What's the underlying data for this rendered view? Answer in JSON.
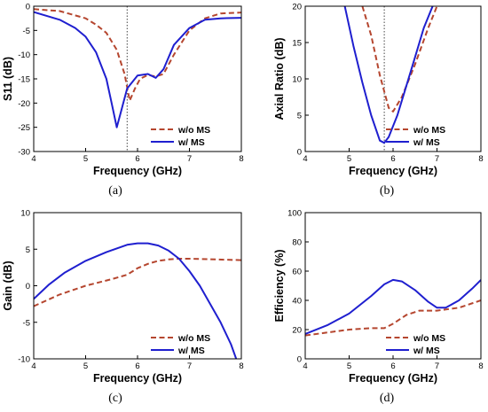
{
  "chart_data": [
    {
      "type": "line",
      "caption": "(a)",
      "xlabel": "Frequency (GHz)",
      "ylabel": "S11 (dB)",
      "xlim": [
        4,
        8
      ],
      "ylim": [
        -30,
        0
      ],
      "xticks": [
        "4",
        "5",
        "6",
        "7",
        "8"
      ],
      "yticks": [
        "0",
        "-5",
        "-10",
        "-15",
        "-20",
        "-25",
        "-30"
      ],
      "marker_x": 5.8,
      "legend_position": "bottom-right",
      "series": [
        {
          "name": "w/o MS",
          "color": "#b5462f",
          "dash": true,
          "x": [
            4.0,
            4.5,
            5.0,
            5.2,
            5.4,
            5.6,
            5.75,
            5.85,
            5.95,
            6.05,
            6.2,
            6.35,
            6.5,
            6.7,
            7.0,
            7.3,
            7.6,
            8.0
          ],
          "y": [
            -0.6,
            -1.0,
            -2.5,
            -3.8,
            -5.5,
            -9.0,
            -14.0,
            -19.5,
            -17.0,
            -15.0,
            -14.2,
            -14.5,
            -14.0,
            -10.0,
            -5.0,
            -2.5,
            -1.5,
            -1.3
          ]
        },
        {
          "name": "w/ MS",
          "color": "#1f1fcf",
          "dash": false,
          "x": [
            4.0,
            4.5,
            4.8,
            5.0,
            5.2,
            5.4,
            5.5,
            5.6,
            5.7,
            5.8,
            6.0,
            6.2,
            6.35,
            6.5,
            6.7,
            7.0,
            7.3,
            7.6,
            8.0
          ],
          "y": [
            -1.2,
            -2.8,
            -4.5,
            -6.3,
            -9.5,
            -15.0,
            -20.0,
            -25.0,
            -21.0,
            -17.0,
            -14.3,
            -14.0,
            -14.8,
            -13.0,
            -8.0,
            -4.5,
            -2.8,
            -2.5,
            -2.4
          ]
        }
      ]
    },
    {
      "type": "line",
      "caption": "(b)",
      "xlabel": "Frequency (GHz)",
      "ylabel": "Axial Ratio (dB)",
      "xlim": [
        4,
        8
      ],
      "ylim": [
        0,
        20
      ],
      "xticks": [
        "4",
        "5",
        "6",
        "7",
        "8"
      ],
      "yticks": [
        "0",
        "5",
        "10",
        "15",
        "20"
      ],
      "marker_x": 5.8,
      "legend_position": "bottom-right",
      "series": [
        {
          "name": "w/o MS",
          "color": "#b5462f",
          "dash": true,
          "x": [
            5.3,
            5.5,
            5.7,
            5.9,
            6.0,
            6.2,
            6.5,
            6.8,
            7.0
          ],
          "y": [
            20.0,
            16.0,
            10.5,
            6.0,
            5.5,
            7.5,
            12.0,
            17.0,
            20.0
          ]
        },
        {
          "name": "w/ MS",
          "color": "#1f1fcf",
          "dash": false,
          "x": [
            4.9,
            5.1,
            5.3,
            5.5,
            5.7,
            5.8,
            5.9,
            6.1,
            6.3,
            6.5,
            6.7,
            6.9
          ],
          "y": [
            20.0,
            14.5,
            9.5,
            5.0,
            1.5,
            1.2,
            2.0,
            5.0,
            9.0,
            13.0,
            17.0,
            20.0
          ]
        }
      ]
    },
    {
      "type": "line",
      "caption": "(c)",
      "xlabel": "Frequency (GHz)",
      "ylabel": "Gain (dB)",
      "xlim": [
        4,
        8
      ],
      "ylim": [
        -10,
        10
      ],
      "xticks": [
        "4",
        "5",
        "6",
        "7",
        "8"
      ],
      "yticks": [
        "10",
        "5",
        "0",
        "-5",
        "-10"
      ],
      "legend_position": "bottom-right",
      "series": [
        {
          "name": "w/o MS",
          "color": "#b5462f",
          "dash": true,
          "x": [
            4.0,
            4.5,
            5.0,
            5.5,
            5.8,
            6.0,
            6.2,
            6.4,
            6.6,
            6.8,
            7.0,
            7.5,
            8.0
          ],
          "y": [
            -2.8,
            -1.2,
            0.0,
            0.9,
            1.5,
            2.4,
            3.0,
            3.4,
            3.6,
            3.7,
            3.7,
            3.6,
            3.5
          ]
        },
        {
          "name": "w/ MS",
          "color": "#1f1fcf",
          "dash": false,
          "x": [
            4.0,
            4.3,
            4.6,
            5.0,
            5.4,
            5.8,
            6.0,
            6.2,
            6.4,
            6.6,
            6.8,
            7.0,
            7.2,
            7.4,
            7.6,
            7.8,
            7.9
          ],
          "y": [
            -1.8,
            0.2,
            1.8,
            3.4,
            4.6,
            5.6,
            5.8,
            5.8,
            5.5,
            4.8,
            3.7,
            2.0,
            0.0,
            -2.5,
            -5.0,
            -8.0,
            -10.0
          ]
        }
      ]
    },
    {
      "type": "line",
      "caption": "(d)",
      "xlabel": "Frequency (GHz)",
      "ylabel": "Efficiency (%)",
      "xlim": [
        4,
        8
      ],
      "ylim": [
        0,
        100
      ],
      "xticks": [
        "4",
        "5",
        "6",
        "7",
        "8"
      ],
      "yticks": [
        "0",
        "20",
        "40",
        "60",
        "80",
        "100"
      ],
      "legend_position": "bottom-right",
      "series": [
        {
          "name": "w/o MS",
          "color": "#b5462f",
          "dash": true,
          "x": [
            4.0,
            4.5,
            5.0,
            5.5,
            5.8,
            6.0,
            6.3,
            6.6,
            7.0,
            7.5,
            8.0
          ],
          "y": [
            16.0,
            18.0,
            20.0,
            21.0,
            21.0,
            24.0,
            30.0,
            33.0,
            33.0,
            35.0,
            40.0
          ]
        },
        {
          "name": "w/ MS",
          "color": "#1f1fcf",
          "dash": false,
          "x": [
            4.0,
            4.5,
            5.0,
            5.5,
            5.8,
            6.0,
            6.2,
            6.5,
            6.8,
            7.0,
            7.2,
            7.5,
            7.8,
            8.0
          ],
          "y": [
            17.0,
            23.0,
            31.0,
            43.0,
            51.0,
            54.0,
            53.0,
            47.0,
            39.0,
            35.0,
            35.0,
            40.0,
            48.0,
            54.0
          ]
        }
      ]
    }
  ]
}
